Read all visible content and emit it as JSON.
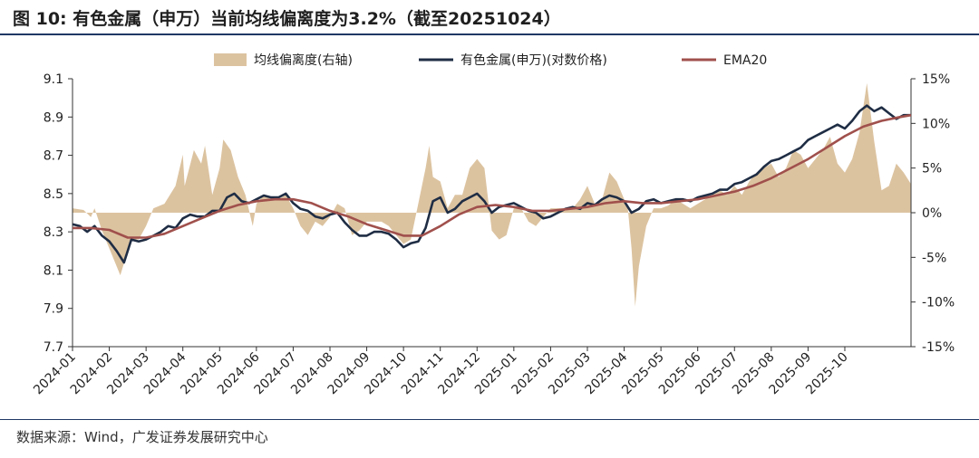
{
  "title": "图 10: 有色金属（申万）当前均线偏离度为3.2%（截至20251024）",
  "source": "数据来源：Wind，广发证券发展研究中心",
  "colors": {
    "deviation": "#dcc3a0",
    "index": "#1f2d44",
    "ema": "#a0504c",
    "axis": "#333333"
  },
  "chart_data": {
    "type": "line",
    "title": "",
    "xlabel": "",
    "ylabel": "",
    "y_left": {
      "ylim": [
        7.7,
        9.1
      ],
      "ticks": [
        7.7,
        7.9,
        8.1,
        8.3,
        8.5,
        8.7,
        8.9,
        9.1
      ],
      "tick_labels": [
        "7.7",
        "7.9",
        "8.1",
        "8.3",
        "8.5",
        "8.7",
        "8.9",
        "9.1"
      ]
    },
    "y_right": {
      "ylim": [
        -15,
        15
      ],
      "ticks": [
        -15,
        -10,
        -5,
        0,
        5,
        10,
        15
      ],
      "tick_labels": [
        "-15%",
        "-10%",
        "-5%",
        "0%",
        "5%",
        "10%",
        "15%"
      ]
    },
    "x_categories": [
      "2024-01",
      "2024-02",
      "2024-03",
      "2024-04",
      "2024-05",
      "2024-06",
      "2024-07",
      "2024-08",
      "2024-09",
      "2024-10",
      "2024-11",
      "2024-12",
      "2025-01",
      "2025-02",
      "2025-03",
      "2025-04",
      "2025-05",
      "2025-06",
      "2025-07",
      "2025-08",
      "2025-09",
      "2025-10"
    ],
    "x_end": 22.8,
    "legend": {
      "position": "top"
    },
    "grid": false,
    "series": [
      {
        "name": "均线偏离度(右轴)",
        "type": "area",
        "axis": "right",
        "x": [
          0,
          0.3,
          0.5,
          0.6,
          0.8,
          1.0,
          1.3,
          1.6,
          1.8,
          2.0,
          2.2,
          2.5,
          2.8,
          3.0,
          3.05,
          3.3,
          3.5,
          3.6,
          3.8,
          4.0,
          4.1,
          4.3,
          4.5,
          4.7,
          4.9,
          5.0,
          5.2,
          5.4,
          5.6,
          5.8,
          6.0,
          6.2,
          6.4,
          6.6,
          6.8,
          7.0,
          7.2,
          7.4,
          7.6,
          7.8,
          8.0,
          8.2,
          8.4,
          8.6,
          8.8,
          9.0,
          9.2,
          9.4,
          9.6,
          9.7,
          9.8,
          10.0,
          10.2,
          10.4,
          10.6,
          10.8,
          11.0,
          11.2,
          11.4,
          11.6,
          11.8,
          12.0,
          12.2,
          12.4,
          12.6,
          12.8,
          13.0,
          13.2,
          13.4,
          13.6,
          13.8,
          14.0,
          14.2,
          14.4,
          14.6,
          14.8,
          15.0,
          15.1,
          15.2,
          15.3,
          15.4,
          15.6,
          15.8,
          16.0,
          16.2,
          16.4,
          16.6,
          16.8,
          17.0,
          17.2,
          17.4,
          17.6,
          17.8,
          18.0,
          18.2,
          18.4,
          18.6,
          18.8,
          19.0,
          19.2,
          19.4,
          19.6,
          19.8,
          20.0,
          20.2,
          20.4,
          20.6,
          20.8,
          21.0,
          21.2,
          21.4,
          21.6,
          21.8,
          22.0,
          22.2,
          22.4,
          22.6,
          22.8
        ],
        "values": [
          0.5,
          0.3,
          -0.5,
          0.5,
          -2.0,
          -4.0,
          -7.0,
          -3.0,
          -3.0,
          -1.5,
          0.5,
          1.0,
          3.0,
          6.5,
          3.0,
          7.0,
          5.5,
          7.5,
          2.0,
          5.0,
          8.2,
          7.0,
          4.0,
          2.0,
          -1.5,
          1.0,
          2.0,
          1.5,
          1.5,
          2.0,
          0.5,
          -1.5,
          -2.5,
          -1.0,
          -1.5,
          -0.5,
          1.0,
          0.5,
          -2.5,
          -2.0,
          -1.0,
          -1.0,
          -1.0,
          -1.5,
          -2.5,
          -3.5,
          -3.0,
          1.0,
          5.0,
          7.5,
          4.0,
          3.5,
          0.5,
          2.0,
          2.0,
          5.0,
          6.0,
          5.0,
          -2.0,
          -3.0,
          -2.5,
          0.5,
          0.5,
          -1.0,
          -1.5,
          -0.5,
          0.5,
          0.5,
          0.5,
          0.5,
          1.5,
          3.0,
          1.0,
          1.5,
          4.5,
          3.5,
          1.5,
          0.5,
          -4.0,
          -10.5,
          -6.0,
          -1.5,
          0.5,
          0.5,
          0.8,
          1.5,
          1.0,
          0.5,
          1.0,
          1.5,
          2.0,
          2.5,
          2.0,
          3.0,
          2.0,
          3.5,
          4.5,
          5.0,
          5.5,
          4.0,
          5.0,
          7.0,
          6.5,
          5.0,
          6.0,
          7.0,
          8.5,
          5.5,
          4.5,
          6.0,
          9.0,
          14.5,
          8.0,
          2.5,
          3.0,
          5.5,
          4.5,
          3.2
        ]
      },
      {
        "name": "有色金属(申万)(对数价格)",
        "type": "line",
        "axis": "left",
        "x": [
          0,
          0.2,
          0.4,
          0.6,
          0.8,
          1.0,
          1.2,
          1.4,
          1.6,
          1.8,
          2.0,
          2.2,
          2.4,
          2.6,
          2.8,
          3.0,
          3.2,
          3.4,
          3.6,
          3.8,
          4.0,
          4.2,
          4.4,
          4.6,
          4.8,
          5.0,
          5.2,
          5.4,
          5.6,
          5.8,
          6.0,
          6.2,
          6.4,
          6.6,
          6.8,
          7.0,
          7.2,
          7.4,
          7.6,
          7.8,
          8.0,
          8.2,
          8.4,
          8.6,
          8.8,
          9.0,
          9.2,
          9.4,
          9.6,
          9.8,
          10.0,
          10.2,
          10.4,
          10.6,
          10.8,
          11.0,
          11.2,
          11.4,
          11.6,
          11.8,
          12.0,
          12.2,
          12.4,
          12.6,
          12.8,
          13.0,
          13.2,
          13.4,
          13.6,
          13.8,
          14.0,
          14.2,
          14.4,
          14.6,
          14.8,
          15.0,
          15.2,
          15.4,
          15.6,
          15.8,
          16.0,
          16.2,
          16.4,
          16.6,
          16.8,
          17.0,
          17.2,
          17.4,
          17.6,
          17.8,
          18.0,
          18.2,
          18.4,
          18.6,
          18.8,
          19.0,
          19.2,
          19.4,
          19.6,
          19.8,
          20.0,
          20.2,
          20.4,
          20.6,
          20.8,
          21.0,
          21.2,
          21.4,
          21.6,
          21.8,
          22.0,
          22.2,
          22.4,
          22.6,
          22.8
        ],
        "values": [
          8.34,
          8.33,
          8.3,
          8.33,
          8.28,
          8.25,
          8.2,
          8.14,
          8.26,
          8.25,
          8.26,
          8.28,
          8.3,
          8.33,
          8.32,
          8.37,
          8.39,
          8.38,
          8.38,
          8.41,
          8.41,
          8.48,
          8.5,
          8.46,
          8.45,
          8.47,
          8.49,
          8.48,
          8.48,
          8.5,
          8.45,
          8.42,
          8.41,
          8.38,
          8.37,
          8.39,
          8.4,
          8.35,
          8.31,
          8.28,
          8.28,
          8.3,
          8.3,
          8.29,
          8.26,
          8.22,
          8.24,
          8.25,
          8.32,
          8.46,
          8.48,
          8.4,
          8.42,
          8.46,
          8.48,
          8.5,
          8.46,
          8.4,
          8.43,
          8.44,
          8.45,
          8.43,
          8.41,
          8.4,
          8.37,
          8.38,
          8.4,
          8.42,
          8.43,
          8.42,
          8.45,
          8.44,
          8.47,
          8.49,
          8.48,
          8.46,
          8.4,
          8.42,
          8.46,
          8.47,
          8.45,
          8.46,
          8.47,
          8.47,
          8.46,
          8.48,
          8.49,
          8.5,
          8.52,
          8.52,
          8.55,
          8.56,
          8.58,
          8.6,
          8.64,
          8.67,
          8.68,
          8.7,
          8.72,
          8.74,
          8.78,
          8.8,
          8.82,
          8.84,
          8.86,
          8.84,
          8.88,
          8.93,
          8.96,
          8.93,
          8.95,
          8.92,
          8.89,
          8.91,
          8.91
        ]
      },
      {
        "name": "EMA20",
        "type": "line",
        "axis": "left",
        "x": [
          0,
          0.5,
          1.0,
          1.5,
          2.0,
          2.5,
          3.0,
          3.5,
          4.0,
          4.5,
          5.0,
          5.5,
          6.0,
          6.5,
          7.0,
          7.5,
          8.0,
          8.5,
          9.0,
          9.5,
          10.0,
          10.5,
          11.0,
          11.5,
          12.0,
          12.5,
          13.0,
          13.5,
          14.0,
          14.5,
          15.0,
          15.5,
          16.0,
          16.5,
          17.0,
          17.5,
          18.0,
          18.5,
          19.0,
          19.5,
          20.0,
          20.5,
          21.0,
          21.5,
          22.0,
          22.5,
          22.8
        ],
        "values": [
          8.32,
          8.32,
          8.31,
          8.27,
          8.27,
          8.29,
          8.33,
          8.37,
          8.41,
          8.44,
          8.46,
          8.47,
          8.47,
          8.45,
          8.41,
          8.38,
          8.34,
          8.31,
          8.28,
          8.28,
          8.33,
          8.39,
          8.43,
          8.44,
          8.43,
          8.41,
          8.41,
          8.42,
          8.43,
          8.45,
          8.46,
          8.45,
          8.45,
          8.46,
          8.47,
          8.49,
          8.51,
          8.54,
          8.58,
          8.63,
          8.68,
          8.74,
          8.8,
          8.85,
          8.88,
          8.9,
          8.91
        ]
      }
    ]
  }
}
